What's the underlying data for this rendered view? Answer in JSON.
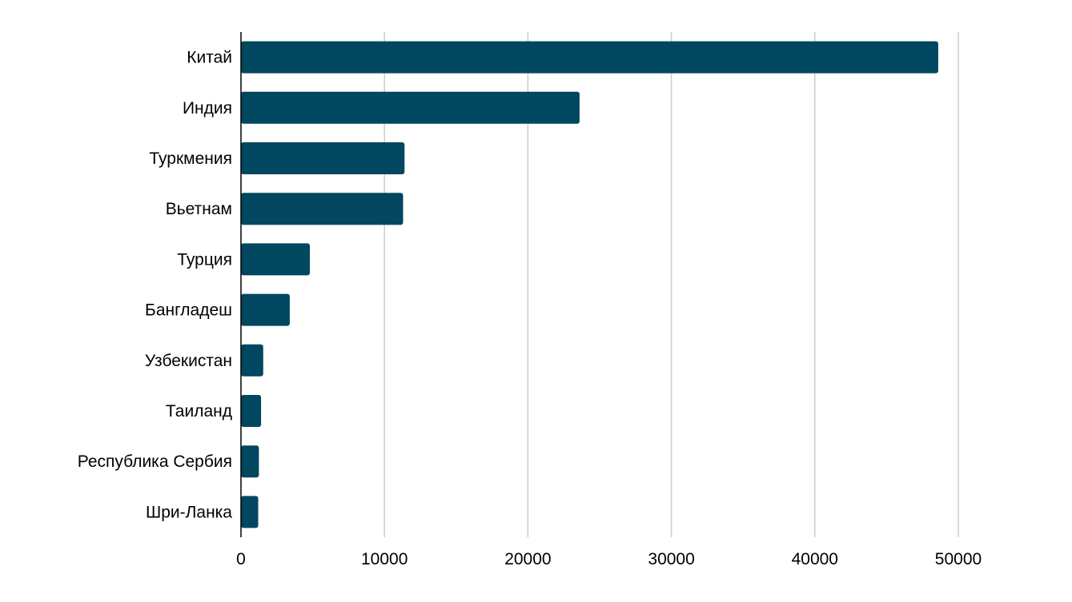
{
  "chart_data": {
    "type": "bar",
    "orientation": "horizontal",
    "categories": [
      "Китай",
      "Индия",
      "Туркмения",
      "Вьетнам",
      "Турция",
      "Бангладеш",
      "Узбекистан",
      "Таиланд",
      "Республика Сербия",
      "Шри-Ланка"
    ],
    "values": [
      48600,
      23600,
      11400,
      11300,
      4800,
      3400,
      1550,
      1400,
      1250,
      1200
    ],
    "title": "",
    "xlabel": "",
    "ylabel": "",
    "xlim": [
      0,
      50000
    ],
    "xticks": [
      0,
      10000,
      20000,
      30000,
      40000,
      50000
    ],
    "xtick_labels": [
      "0",
      "10000",
      "20000",
      "30000",
      "40000",
      "50000"
    ],
    "grid": "vertical",
    "legend": "none",
    "bar_color": "#00475f"
  }
}
